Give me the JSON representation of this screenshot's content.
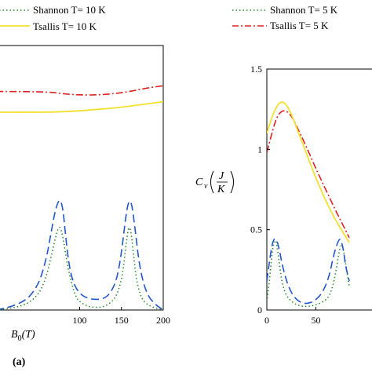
{
  "chart_data": [
    {
      "panel": "(a)",
      "type": "line",
      "xlabel": "B",
      "xlabel_sub": "0",
      "xlabel_unit": "(T)",
      "xlim": [
        0,
        200
      ],
      "x_ticks": [
        100,
        150,
        200
      ],
      "legend_location": "top",
      "series": [
        {
          "name": "Shannon T= 10 K",
          "color": "#2e8b2e",
          "style": "dotted",
          "x": [
            0,
            30,
            50,
            60,
            67,
            72,
            76,
            80,
            85,
            90,
            95,
            100,
            110,
            120,
            130,
            140,
            145,
            150,
            153,
            156,
            159,
            162,
            165,
            168,
            172,
            177,
            185,
            195,
            200
          ],
          "y": [
            0.0,
            0.01,
            0.06,
            0.14,
            0.25,
            0.33,
            0.37,
            0.32,
            0.2,
            0.12,
            0.06,
            0.035,
            0.015,
            0.01,
            0.015,
            0.04,
            0.07,
            0.13,
            0.2,
            0.3,
            0.37,
            0.33,
            0.22,
            0.13,
            0.07,
            0.035,
            0.015,
            0.005,
            0.0
          ]
        },
        {
          "name": "",
          "color": "#2255cc",
          "style": "longdash",
          "x": [
            0,
            30,
            50,
            60,
            65,
            70,
            74,
            77,
            80,
            83,
            87,
            92,
            100,
            110,
            120,
            130,
            138,
            145,
            150,
            154,
            157,
            160,
            163,
            167,
            172,
            180,
            190,
            200
          ],
          "y": [
            0.0,
            0.02,
            0.1,
            0.22,
            0.32,
            0.42,
            0.47,
            0.48,
            0.44,
            0.33,
            0.2,
            0.12,
            0.07,
            0.05,
            0.045,
            0.05,
            0.08,
            0.14,
            0.25,
            0.37,
            0.45,
            0.48,
            0.45,
            0.33,
            0.18,
            0.07,
            0.025,
            0.0
          ]
        },
        {
          "name": "",
          "color": "#dd2222",
          "style": "dashdot",
          "x": [
            0,
            60,
            80,
            100,
            120,
            140,
            160,
            180,
            200
          ],
          "y": [
            0.95,
            0.95,
            0.94,
            0.935,
            0.935,
            0.94,
            0.95,
            0.965,
            0.975
          ]
        },
        {
          "name": "Tsallis T= 10 K",
          "color": "#f2e030",
          "style": "solid",
          "x": [
            0,
            60,
            80,
            100,
            120,
            140,
            160,
            180,
            200
          ],
          "y": [
            0.86,
            0.86,
            0.862,
            0.866,
            0.872,
            0.878,
            0.886,
            0.896,
            0.906
          ]
        }
      ]
    },
    {
      "panel": "",
      "type": "line",
      "ylabel": "C",
      "ylabel_sub": "v",
      "ylabel_unit_num": "J",
      "ylabel_unit_den": "K",
      "ylim": [
        0,
        1.5
      ],
      "y_ticks": [
        "0",
        "0.5",
        "1",
        "1.5"
      ],
      "xlim": [
        0,
        120
      ],
      "x_ticks": [
        0,
        50
      ],
      "legend_location": "top",
      "series": [
        {
          "name": "Shannon T= 5 K",
          "color": "#2e8b2e",
          "style": "dotted",
          "x": [
            0,
            3,
            6,
            9,
            12,
            15,
            20,
            30,
            40,
            50,
            60,
            65,
            70,
            74,
            77,
            80,
            84
          ],
          "y": [
            0.05,
            0.2,
            0.4,
            0.45,
            0.33,
            0.18,
            0.08,
            0.03,
            0.02,
            0.03,
            0.06,
            0.1,
            0.22,
            0.38,
            0.42,
            0.3,
            0.15
          ]
        },
        {
          "name": "",
          "color": "#2255cc",
          "style": "longdash",
          "x": [
            0,
            3,
            6,
            9,
            12,
            16,
            22,
            30,
            40,
            50,
            58,
            64,
            68,
            72,
            75,
            78,
            80,
            84
          ],
          "y": [
            0.18,
            0.32,
            0.43,
            0.45,
            0.4,
            0.27,
            0.14,
            0.06,
            0.035,
            0.06,
            0.12,
            0.22,
            0.34,
            0.42,
            0.45,
            0.38,
            0.28,
            0.18
          ]
        },
        {
          "name": "Tsallis T= 5 K",
          "color": "#dd2222",
          "style": "dashdot",
          "x": [
            0,
            5,
            10,
            15,
            20,
            25,
            30,
            40,
            50,
            60,
            70,
            80,
            84
          ],
          "y": [
            0.98,
            1.1,
            1.2,
            1.24,
            1.24,
            1.21,
            1.15,
            1.02,
            0.88,
            0.75,
            0.62,
            0.5,
            0.45
          ]
        },
        {
          "name": "",
          "color": "#f2e030",
          "style": "solid",
          "x": [
            0,
            5,
            10,
            15,
            20,
            25,
            30,
            40,
            50,
            60,
            70,
            80,
            84
          ],
          "y": [
            1.1,
            1.2,
            1.27,
            1.3,
            1.28,
            1.22,
            1.14,
            0.98,
            0.82,
            0.68,
            0.56,
            0.46,
            0.42
          ]
        }
      ]
    }
  ]
}
